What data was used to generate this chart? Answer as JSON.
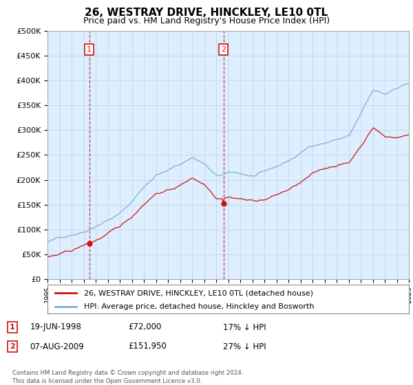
{
  "title": "26, WESTRAY DRIVE, HINCKLEY, LE10 0TL",
  "subtitle": "Price paid vs. HM Land Registry's House Price Index (HPI)",
  "title_fontsize": 11,
  "subtitle_fontsize": 9,
  "hpi_color": "#7aaed6",
  "price_color": "#cc1111",
  "marker_color": "#cc1111",
  "grid_color": "#c8d8e8",
  "background_color": "#ffffff",
  "plot_bg_color": "#ddeeff",
  "ylim": [
    0,
    500000
  ],
  "yticks": [
    0,
    50000,
    100000,
    150000,
    200000,
    250000,
    300000,
    350000,
    400000,
    450000,
    500000
  ],
  "ytick_labels": [
    "£0",
    "£50K",
    "£100K",
    "£150K",
    "£200K",
    "£250K",
    "£300K",
    "£350K",
    "£400K",
    "£450K",
    "£500K"
  ],
  "legend1_label": "26, WESTRAY DRIVE, HINCKLEY, LE10 0TL (detached house)",
  "legend2_label": "HPI: Average price, detached house, Hinckley and Bosworth",
  "annotation1_date": "19-JUN-1998",
  "annotation1_price": "£72,000",
  "annotation1_pct": "17% ↓ HPI",
  "annotation2_date": "07-AUG-2009",
  "annotation2_price": "£151,950",
  "annotation2_pct": "27% ↓ HPI",
  "footer": "Contains HM Land Registry data © Crown copyright and database right 2024.\nThis data is licensed under the Open Government Licence v3.0.",
  "sale1_x": 1998.47,
  "sale1_y": 72000,
  "sale2_x": 2009.6,
  "sale2_y": 151950,
  "vline1_x": 1998.47,
  "vline2_x": 2009.6,
  "xlim_start": 1995,
  "xlim_end": 2025
}
